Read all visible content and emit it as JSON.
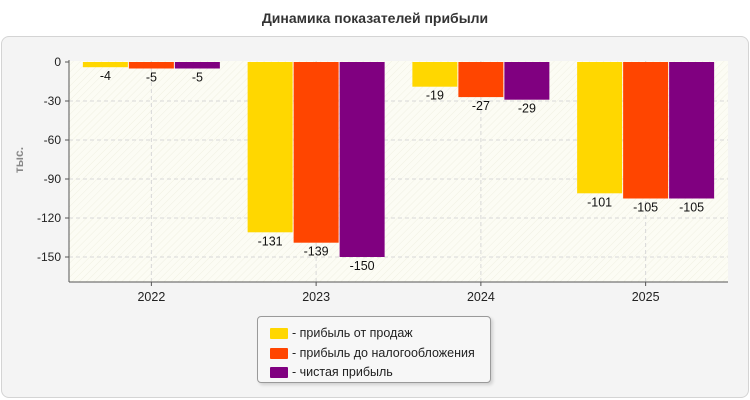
{
  "chart_data": {
    "type": "bar",
    "title": "Динамика показателей прибыли",
    "ylabel": "тыс.",
    "categories": [
      "2022",
      "2023",
      "2024",
      "2025"
    ],
    "series": [
      {
        "name": "- прибыль от продаж",
        "values": [
          -4,
          -131,
          -19,
          -101
        ],
        "color": "#FFD700"
      },
      {
        "name": "- прибыль до налогообложения",
        "values": [
          -5,
          -139,
          -27,
          -105
        ],
        "color": "#FF4500"
      },
      {
        "name": "- чистая прибыль",
        "values": [
          -5,
          -150,
          -29,
          -105
        ],
        "color": "#800080"
      }
    ],
    "yticks": [
      0,
      -30,
      -60,
      -90,
      -120,
      -150
    ],
    "ylim": [
      -170,
      0
    ],
    "grid": true,
    "legend_position": "bottom-center"
  }
}
